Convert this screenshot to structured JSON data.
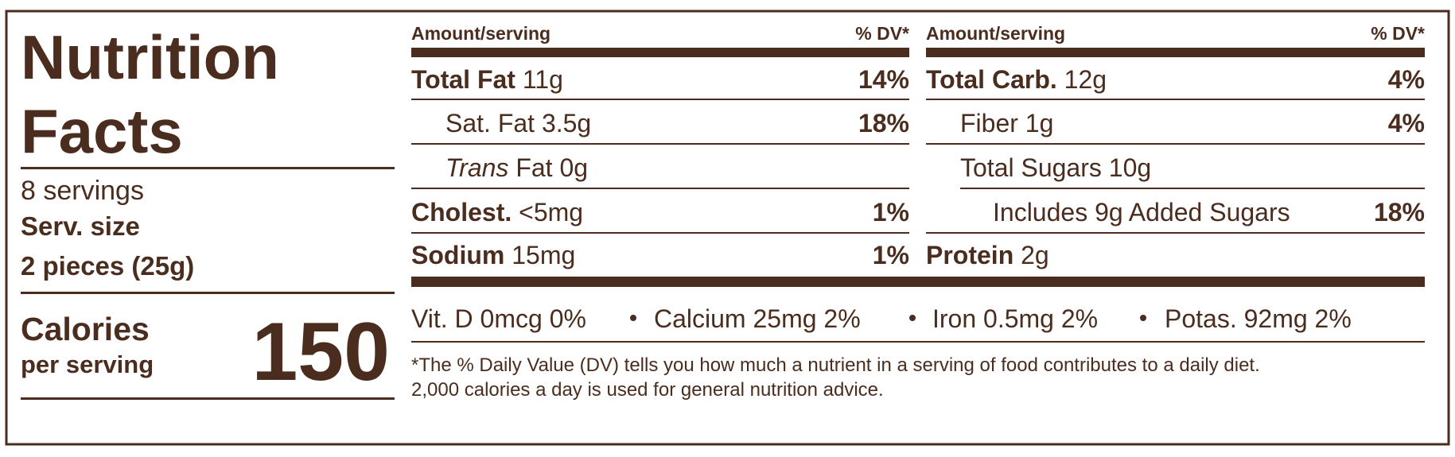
{
  "title_lines": [
    "Nutrition",
    "Facts"
  ],
  "servings": "8 servings",
  "serving_size_label": "Serv. size",
  "serving_size": "2 pieces (25g)",
  "calories_label": "Calories",
  "calories_note": "per serving",
  "calories": 150,
  "column_header": {
    "amount": "Amount/serving",
    "dv": "% DV*"
  },
  "left_rows": [
    {
      "label": "Total Fat",
      "amount": "11g",
      "dv": "14%"
    },
    {
      "label": "Sat. Fat",
      "amount": "3.5g",
      "dv": "18%"
    },
    {
      "italic": "Trans",
      "label": "Fat",
      "amount": "0g"
    },
    {
      "label": "Cholest.",
      "amount": "<5mg",
      "dv": "1%"
    },
    {
      "label": "Sodium",
      "amount": "15mg",
      "dv": "1%"
    }
  ],
  "right_rows": [
    {
      "label": "Total Carb.",
      "amount": "12g",
      "dv": "4%"
    },
    {
      "label": "Fiber",
      "amount": "1g",
      "dv": "4%"
    },
    {
      "label": "Total Sugars",
      "amount": "10g"
    },
    {
      "label": "Includes 9g Added Sugars",
      "dv": "18%"
    },
    {
      "label": "Protein",
      "amount": "2g"
    }
  ],
  "vitamins": [
    "Vit. D 0mcg 0%",
    "Calcium 25mg 2%",
    "Iron 0.5mg 2%",
    "Potas. 92mg 2%"
  ],
  "footnote": [
    "*The % Daily Value (DV) tells you how much a nutrient in a serving of food contributes to a daily diet.",
    "2,000 calories a day is used for general nutrition advice."
  ]
}
